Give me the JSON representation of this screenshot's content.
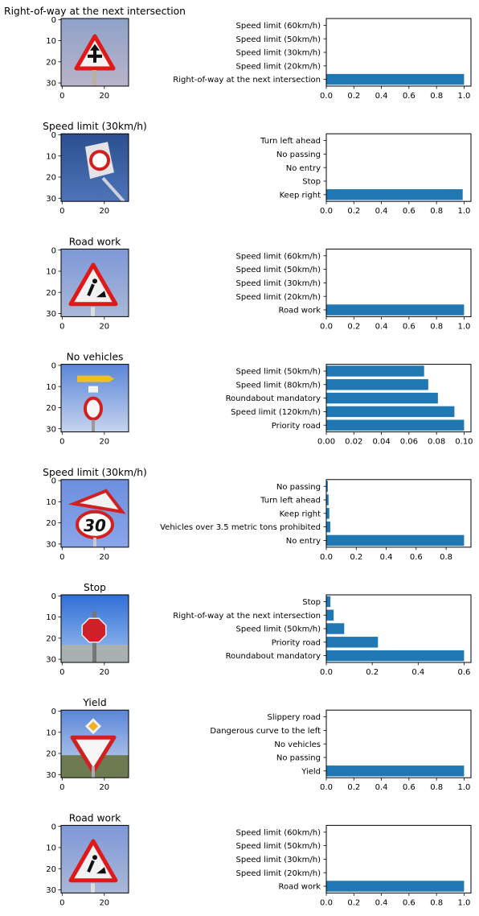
{
  "colors": {
    "bar": "#1f77b4",
    "axis": "#000000",
    "background": "#ffffff"
  },
  "image_axis": {
    "xticks": [
      "0",
      "20"
    ],
    "yticks": [
      "0",
      "10",
      "20",
      "30"
    ]
  },
  "rows": [
    {
      "image_title": "Right-of-way at the next intersection",
      "image_icon": "warning-triangle-crossroads-icon"
    },
    {
      "image_title": "Speed limit (30km/h)",
      "image_icon": "rotated-round-sign-icon"
    },
    {
      "image_title": "Road work",
      "image_icon": "warning-triangle-road-work-icon"
    },
    {
      "image_title": "No vehicles",
      "image_icon": "round-sign-with-yellow-arrow-icon"
    },
    {
      "image_title": "Speed limit (30km/h)",
      "image_icon": "speed-limit-30-with-triangle-icon"
    },
    {
      "image_title": "Stop",
      "image_icon": "stop-sign-icon"
    },
    {
      "image_title": "Yield",
      "image_icon": "yield-sign-icon"
    },
    {
      "image_title": "Road work",
      "image_icon": "warning-triangle-road-work-icon"
    }
  ],
  "chart_data": [
    {
      "type": "bar",
      "orientation": "horizontal",
      "categories": [
        "Right-of-way at the next intersection",
        "Speed limit (20km/h)",
        "Speed limit (30km/h)",
        "Speed limit (50km/h)",
        "Speed limit (60km/h)"
      ],
      "values": [
        1.0,
        0,
        0,
        0,
        0
      ],
      "xlim": [
        0,
        1.05
      ],
      "xticks": [
        "0.0",
        "0.2",
        "0.4",
        "0.6",
        "0.8",
        "1.0"
      ],
      "xtick_values": [
        0,
        0.2,
        0.4,
        0.6,
        0.8,
        1.0
      ]
    },
    {
      "type": "bar",
      "orientation": "horizontal",
      "categories": [
        "Keep right",
        "Stop",
        "No entry",
        "No passing",
        "Turn left ahead"
      ],
      "values": [
        0.99,
        0,
        0,
        0,
        0
      ],
      "xlim": [
        0,
        1.05
      ],
      "xticks": [
        "0.0",
        "0.2",
        "0.4",
        "0.6",
        "0.8",
        "1.0"
      ],
      "xtick_values": [
        0,
        0.2,
        0.4,
        0.6,
        0.8,
        1.0
      ]
    },
    {
      "type": "bar",
      "orientation": "horizontal",
      "categories": [
        "Road work",
        "Speed limit (20km/h)",
        "Speed limit (30km/h)",
        "Speed limit (50km/h)",
        "Speed limit (60km/h)"
      ],
      "values": [
        1.0,
        0,
        0,
        0,
        0
      ],
      "xlim": [
        0,
        1.05
      ],
      "xticks": [
        "0.0",
        "0.2",
        "0.4",
        "0.6",
        "0.8",
        "1.0"
      ],
      "xtick_values": [
        0,
        0.2,
        0.4,
        0.6,
        0.8,
        1.0
      ]
    },
    {
      "type": "bar",
      "orientation": "horizontal",
      "categories": [
        "Priority road",
        "Speed limit (120km/h)",
        "Roundabout mandatory",
        "Speed limit (80km/h)",
        "Speed limit (50km/h)"
      ],
      "values": [
        0.1,
        0.093,
        0.081,
        0.074,
        0.071
      ],
      "xlim": [
        0,
        0.105
      ],
      "xticks": [
        "0.00",
        "0.02",
        "0.04",
        "0.06",
        "0.08",
        "0.10"
      ],
      "xtick_values": [
        0,
        0.02,
        0.04,
        0.06,
        0.08,
        0.1
      ]
    },
    {
      "type": "bar",
      "orientation": "horizontal",
      "categories": [
        "No entry",
        "Vehicles over 3.5 metric tons prohibited",
        "Keep right",
        "Turn left ahead",
        "No passing"
      ],
      "values": [
        0.92,
        0.027,
        0.02,
        0.015,
        0.01
      ],
      "xlim": [
        0,
        0.966
      ],
      "xticks": [
        "0.0",
        "0.2",
        "0.4",
        "0.6",
        "0.8"
      ],
      "xtick_values": [
        0,
        0.2,
        0.4,
        0.6,
        0.8
      ]
    },
    {
      "type": "bar",
      "orientation": "horizontal",
      "categories": [
        "Roundabout mandatory",
        "Priority road",
        "Speed limit (50km/h)",
        "Right-of-way at the next intersection",
        "Stop"
      ],
      "values": [
        0.6,
        0.225,
        0.078,
        0.032,
        0.018
      ],
      "xlim": [
        0,
        0.63
      ],
      "xticks": [
        "0.0",
        "0.2",
        "0.4",
        "0.6"
      ],
      "xtick_values": [
        0,
        0.2,
        0.4,
        0.6
      ]
    },
    {
      "type": "bar",
      "orientation": "horizontal",
      "categories": [
        "Yield",
        "No passing",
        "No vehicles",
        "Dangerous curve to the left",
        "Slippery road"
      ],
      "values": [
        1.0,
        0,
        0,
        0,
        0
      ],
      "xlim": [
        0,
        1.05
      ],
      "xticks": [
        "0.0",
        "0.2",
        "0.4",
        "0.6",
        "0.8",
        "1.0"
      ],
      "xtick_values": [
        0,
        0.2,
        0.4,
        0.6,
        0.8,
        1.0
      ]
    },
    {
      "type": "bar",
      "orientation": "horizontal",
      "categories": [
        "Road work",
        "Speed limit (20km/h)",
        "Speed limit (30km/h)",
        "Speed limit (50km/h)",
        "Speed limit (60km/h)"
      ],
      "values": [
        1.0,
        0,
        0,
        0,
        0
      ],
      "xlim": [
        0,
        1.05
      ],
      "xticks": [
        "0.0",
        "0.2",
        "0.4",
        "0.6",
        "0.8",
        "1.0"
      ],
      "xtick_values": [
        0,
        0.2,
        0.4,
        0.6,
        0.8,
        1.0
      ]
    }
  ]
}
